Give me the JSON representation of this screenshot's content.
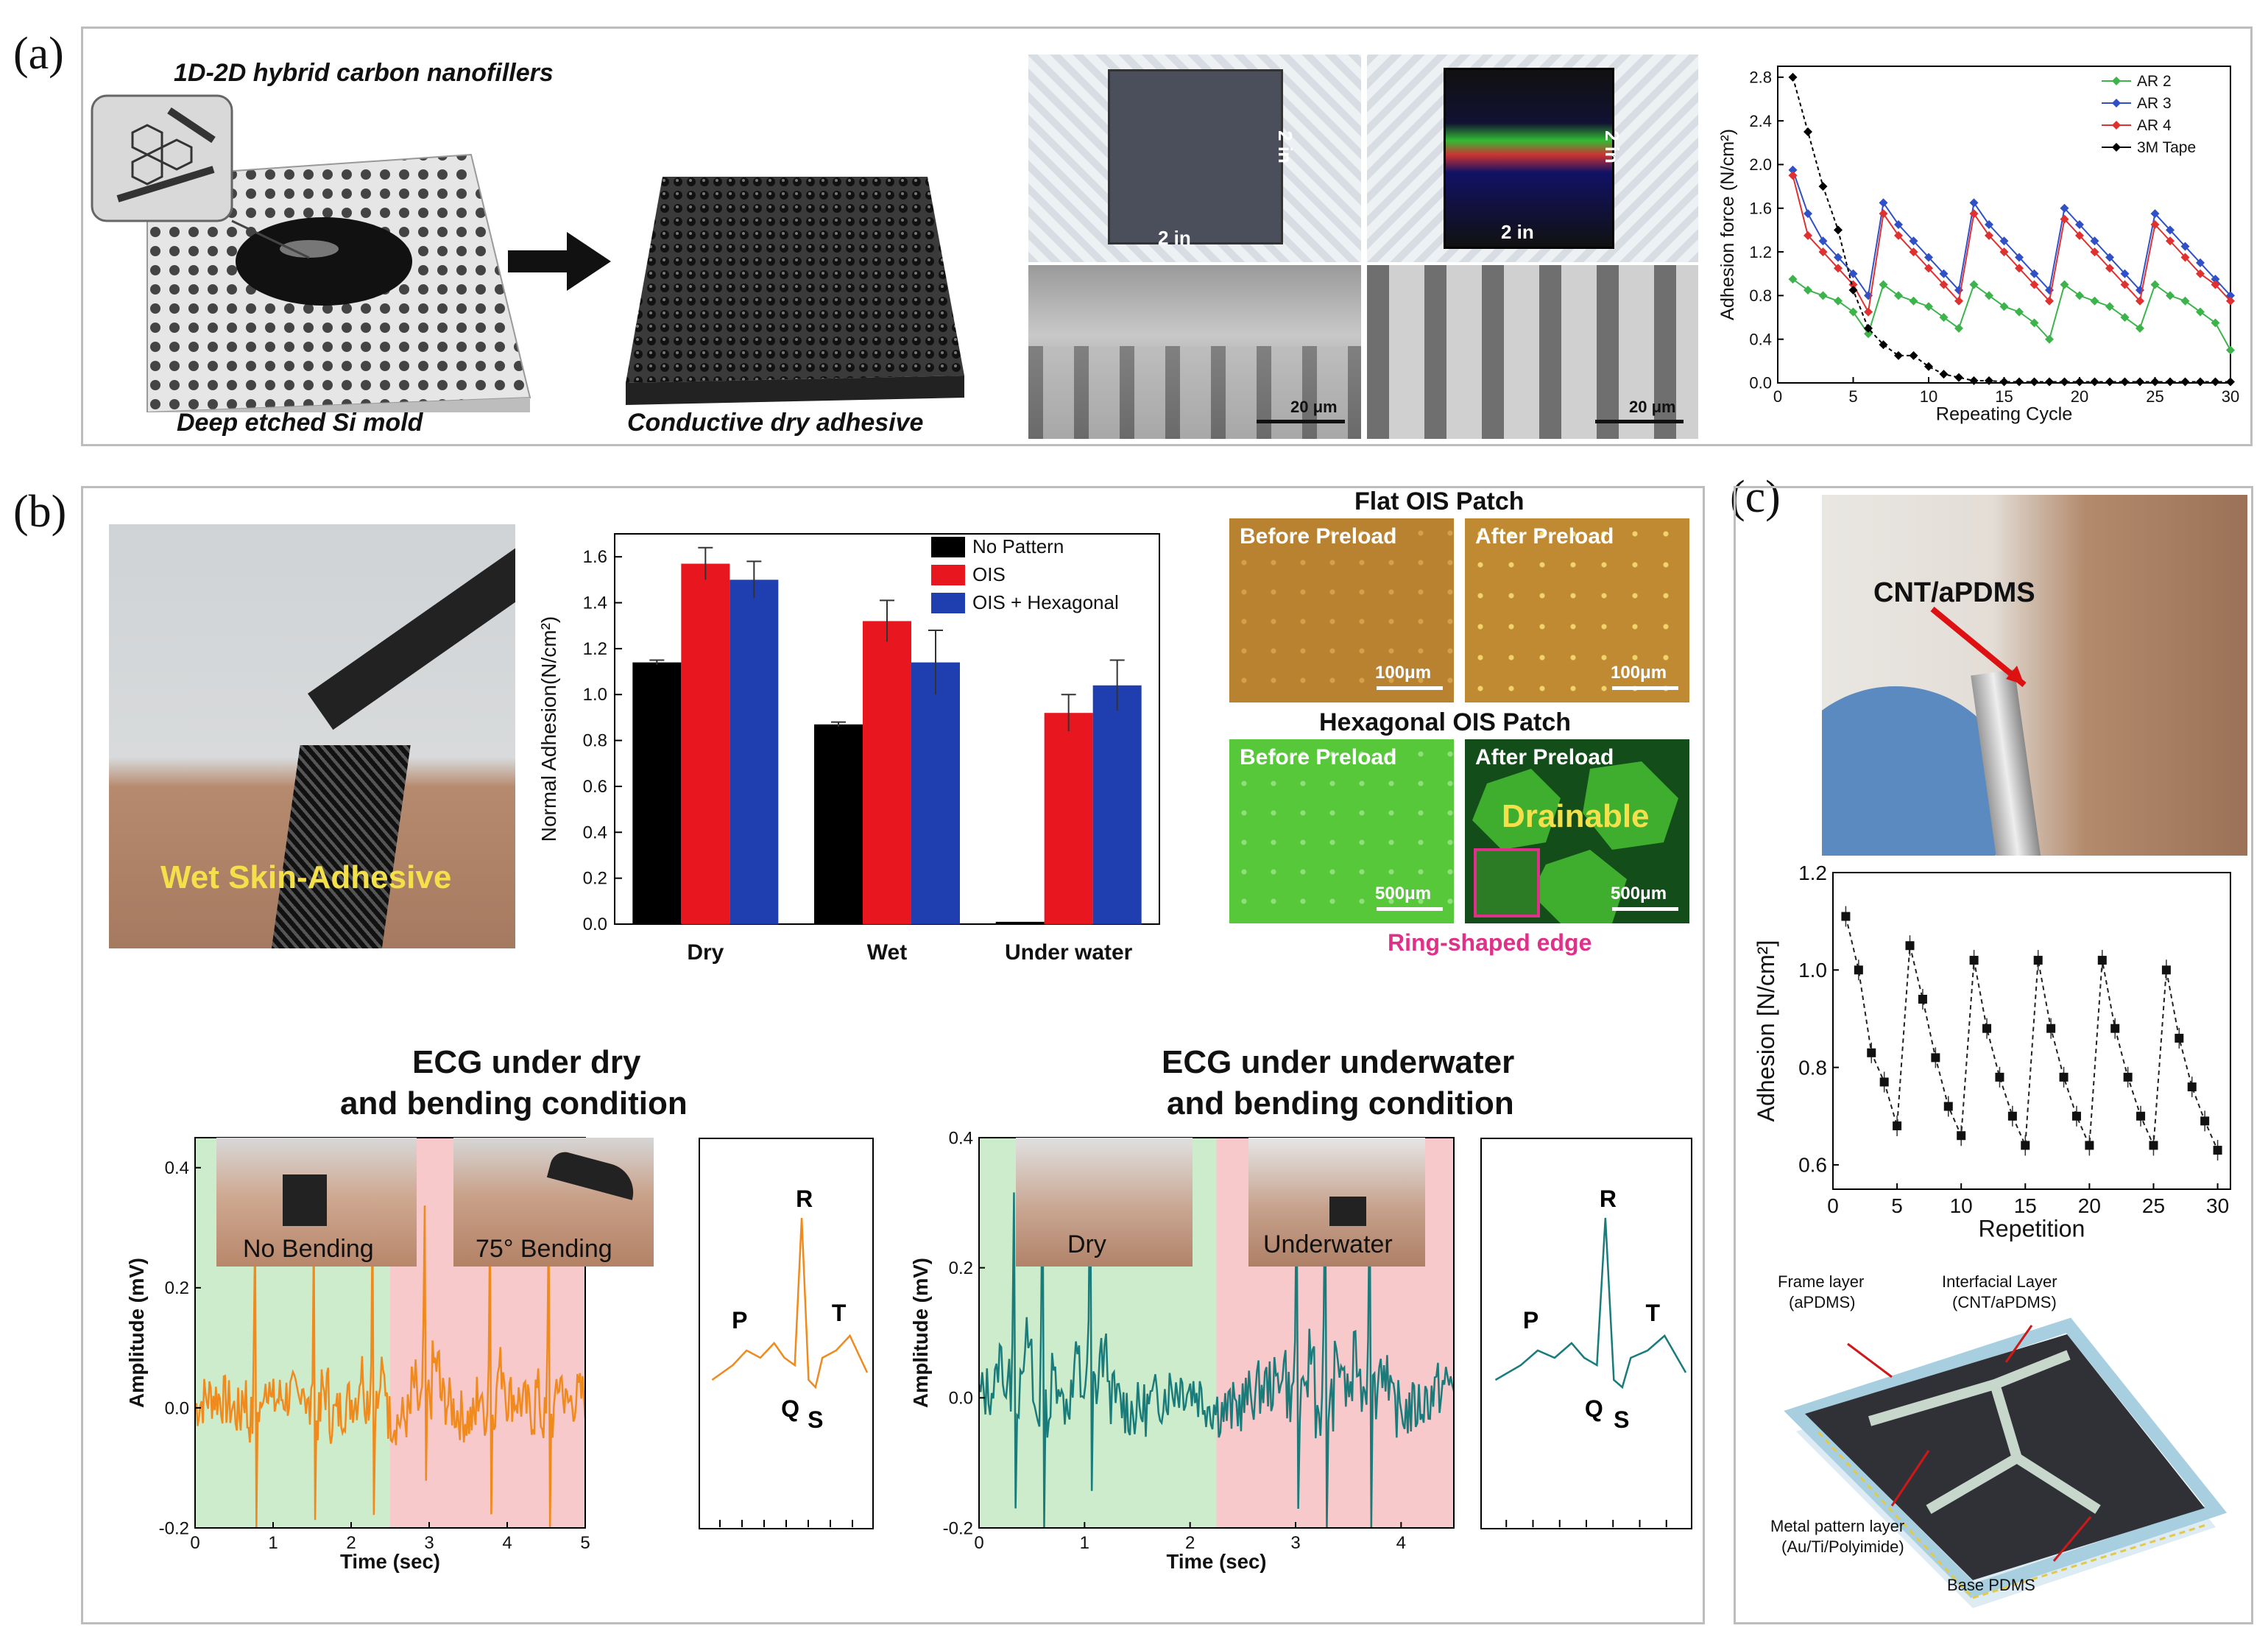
{
  "panels": {
    "a": {
      "label": "(a)",
      "caption_top": "1D-2D hybrid carbon nanofillers",
      "caption_mold": "Deep etched Si mold",
      "caption_adhesive": "Conductive dry adhesive",
      "dim_2in": "2 in",
      "scale_20um": "20 μm"
    },
    "b": {
      "label": "(b)",
      "photo_text": "Wet Skin-Adhesive",
      "ois_flat_title": "Flat OIS Patch",
      "ois_hex_title": "Hexagonal OIS Patch",
      "before_preload": "Before Preload",
      "after_preload": "After Preload",
      "scale_100": "100μm",
      "scale_500": "500μm",
      "drainable": "Drainable",
      "ring_edge": "Ring-shaped edge",
      "ecg_dry_title_1": "ECG under dry",
      "ecg_dry_title_2": "and bending condition",
      "ecg_wet_title_1": "ECG under underwater",
      "ecg_wet_title_2": "and bending condition",
      "no_bending": "No Bending",
      "bending_75": "75° Bending",
      "inset_dry": "Dry",
      "inset_underwater": "Underwater",
      "pqrst": {
        "P": "P",
        "Q": "Q",
        "R": "R",
        "S": "S",
        "T": "T"
      }
    },
    "c": {
      "label": "(c)",
      "photo_text": "CNT/aPDMS",
      "frame_layer": "Frame layer",
      "frame_layer_sub": "(aPDMS)",
      "interfacial_layer": "Interfacial Layer",
      "interfacial_layer_sub": "(CNT/aPDMS)",
      "metal_layer": "Metal pattern layer",
      "metal_layer_sub": "(Au/Ti/Polyimide)",
      "base_pdms": "Base PDMS"
    }
  },
  "chart_data": [
    {
      "id": "a-adhesion-cycle",
      "type": "line",
      "title": "",
      "xlabel": "Repeating Cycle",
      "ylabel": "Adhesion force (N/cm²)",
      "xlim": [
        0,
        30
      ],
      "ylim": [
        0.0,
        2.9
      ],
      "xticks": [
        "0",
        "5",
        "10",
        "15",
        "20",
        "25",
        "30"
      ],
      "yticks": [
        "0.0",
        "0.4",
        "0.8",
        "1.2",
        "1.6",
        "2.0",
        "2.4",
        "2.8"
      ],
      "legend_position": "top-right",
      "series": [
        {
          "name": "AR 2",
          "color": "#3cb44b",
          "x": [
            1,
            2,
            3,
            4,
            5,
            6,
            7,
            8,
            9,
            10,
            11,
            12,
            13,
            14,
            15,
            16,
            17,
            18,
            19,
            20,
            21,
            22,
            23,
            24,
            25,
            26,
            27,
            28,
            29,
            30
          ],
          "values": [
            0.95,
            0.85,
            0.8,
            0.75,
            0.65,
            0.45,
            0.9,
            0.8,
            0.75,
            0.7,
            0.6,
            0.5,
            0.9,
            0.8,
            0.7,
            0.65,
            0.55,
            0.4,
            0.9,
            0.8,
            0.75,
            0.7,
            0.6,
            0.5,
            0.9,
            0.8,
            0.75,
            0.65,
            0.55,
            0.3
          ]
        },
        {
          "name": "AR 3",
          "color": "#3050c8",
          "x": [
            1,
            2,
            3,
            4,
            5,
            6,
            7,
            8,
            9,
            10,
            11,
            12,
            13,
            14,
            15,
            16,
            17,
            18,
            19,
            20,
            21,
            22,
            23,
            24,
            25,
            26,
            27,
            28,
            29,
            30
          ],
          "values": [
            1.95,
            1.55,
            1.3,
            1.15,
            1.0,
            0.8,
            1.65,
            1.45,
            1.3,
            1.15,
            1.0,
            0.85,
            1.65,
            1.45,
            1.3,
            1.15,
            1.0,
            0.85,
            1.6,
            1.45,
            1.3,
            1.15,
            1.0,
            0.85,
            1.55,
            1.4,
            1.25,
            1.1,
            0.95,
            0.8
          ]
        },
        {
          "name": "AR 4",
          "color": "#e03030",
          "x": [
            1,
            2,
            3,
            4,
            5,
            6,
            7,
            8,
            9,
            10,
            11,
            12,
            13,
            14,
            15,
            16,
            17,
            18,
            19,
            20,
            21,
            22,
            23,
            24,
            25,
            26,
            27,
            28,
            29,
            30
          ],
          "values": [
            1.9,
            1.35,
            1.2,
            1.05,
            0.9,
            0.65,
            1.55,
            1.35,
            1.2,
            1.05,
            0.9,
            0.75,
            1.55,
            1.35,
            1.2,
            1.05,
            0.9,
            0.75,
            1.5,
            1.35,
            1.2,
            1.05,
            0.9,
            0.75,
            1.45,
            1.3,
            1.15,
            1.0,
            0.9,
            0.75
          ]
        },
        {
          "name": "3M Tape",
          "color": "#000000",
          "x": [
            1,
            2,
            3,
            4,
            5,
            6,
            7,
            8,
            9,
            10,
            11,
            12,
            13,
            14,
            15,
            16,
            17,
            18,
            19,
            20,
            21,
            22,
            23,
            24,
            25,
            26,
            27,
            28,
            29,
            30
          ],
          "values": [
            2.8,
            2.3,
            1.8,
            1.4,
            0.85,
            0.5,
            0.35,
            0.25,
            0.25,
            0.15,
            0.08,
            0.05,
            0.02,
            0.02,
            0.01,
            0.01,
            0.01,
            0.01,
            0.01,
            0.01,
            0.01,
            0.01,
            0.01,
            0.01,
            0.01,
            0.01,
            0.01,
            0.01,
            0.01,
            0.01
          ]
        }
      ]
    },
    {
      "id": "b-normal-adhesion",
      "type": "bar",
      "title": "",
      "xlabel": "",
      "ylabel": "Normal Adhesion(N/cm²)",
      "ylim": [
        0.0,
        1.7
      ],
      "yticks": [
        "0.0",
        "0.2",
        "0.4",
        "0.6",
        "0.8",
        "1.0",
        "1.2",
        "1.4",
        "1.6"
      ],
      "categories": [
        "Dry",
        "Wet",
        "Under water"
      ],
      "legend_position": "top-right",
      "series": [
        {
          "name": "No Pattern",
          "color": "#000000",
          "values": [
            1.14,
            0.87,
            0.01
          ],
          "errors": [
            0.01,
            0.01,
            0.0
          ]
        },
        {
          "name": "OIS",
          "color": "#e8171f",
          "values": [
            1.57,
            1.32,
            0.92
          ],
          "errors": [
            0.07,
            0.09,
            0.08
          ]
        },
        {
          "name": "OIS + Hexagonal",
          "color": "#1f3fb0",
          "values": [
            1.5,
            1.14,
            1.04
          ],
          "errors": [
            0.08,
            0.14,
            0.11
          ]
        }
      ]
    },
    {
      "id": "b-ecg-dry",
      "type": "line",
      "xlabel": "Time (sec)",
      "ylabel": "Amplitude (mV)",
      "xlim": [
        0,
        5
      ],
      "ylim": [
        -0.2,
        0.45
      ],
      "xticks": [
        "0",
        "1",
        "2",
        "3",
        "4",
        "5"
      ],
      "yticks": [
        "-0.2",
        "0.0",
        "0.2",
        "0.4"
      ],
      "regions": [
        {
          "from": 0,
          "to": 2.5,
          "label": "No Bending",
          "color": "#cdeccc"
        },
        {
          "from": 2.5,
          "to": 5,
          "label": "75° Bending",
          "color": "#f7c9cb"
        }
      ],
      "series": [
        {
          "name": "ECG dry",
          "color": "#f08a1c"
        }
      ]
    },
    {
      "id": "b-ecg-underwater",
      "type": "line",
      "xlabel": "Time (sec)",
      "ylabel": "Amplitude (mV)",
      "xlim": [
        0,
        4.5
      ],
      "ylim": [
        -0.2,
        0.4
      ],
      "xticks": [
        "0",
        "1",
        "2",
        "3",
        "4"
      ],
      "yticks": [
        "-0.2",
        "0.0",
        "0.2",
        "0.4"
      ],
      "regions": [
        {
          "from": 0,
          "to": 2.25,
          "label": "Dry",
          "color": "#cdeccc"
        },
        {
          "from": 2.25,
          "to": 4.5,
          "label": "Underwater",
          "color": "#f7c9cb"
        }
      ],
      "series": [
        {
          "name": "ECG underwater",
          "color": "#1a7b7b"
        }
      ]
    },
    {
      "id": "c-adhesion-repetition",
      "type": "line",
      "xlabel": "Repetition",
      "ylabel": "Adhesion [N/cm²]",
      "xlim": [
        0,
        31
      ],
      "ylim": [
        0.55,
        1.2
      ],
      "xticks": [
        "0",
        "5",
        "10",
        "15",
        "20",
        "25",
        "30"
      ],
      "yticks": [
        "0.6",
        "0.8",
        "1.0",
        "1.2"
      ],
      "series": [
        {
          "name": "Adhesion",
          "color": "#222222",
          "x": [
            1,
            2,
            3,
            4,
            5,
            6,
            7,
            8,
            9,
            10,
            11,
            12,
            13,
            14,
            15,
            16,
            17,
            18,
            19,
            20,
            21,
            22,
            23,
            24,
            25,
            26,
            27,
            28,
            29,
            30
          ],
          "values": [
            1.11,
            1.0,
            0.83,
            0.77,
            0.68,
            1.05,
            0.94,
            0.82,
            0.72,
            0.66,
            1.02,
            0.88,
            0.78,
            0.7,
            0.64,
            1.02,
            0.88,
            0.78,
            0.7,
            0.64,
            1.02,
            0.88,
            0.78,
            0.7,
            0.64,
            1.0,
            0.86,
            0.76,
            0.69,
            0.63
          ]
        }
      ]
    }
  ]
}
